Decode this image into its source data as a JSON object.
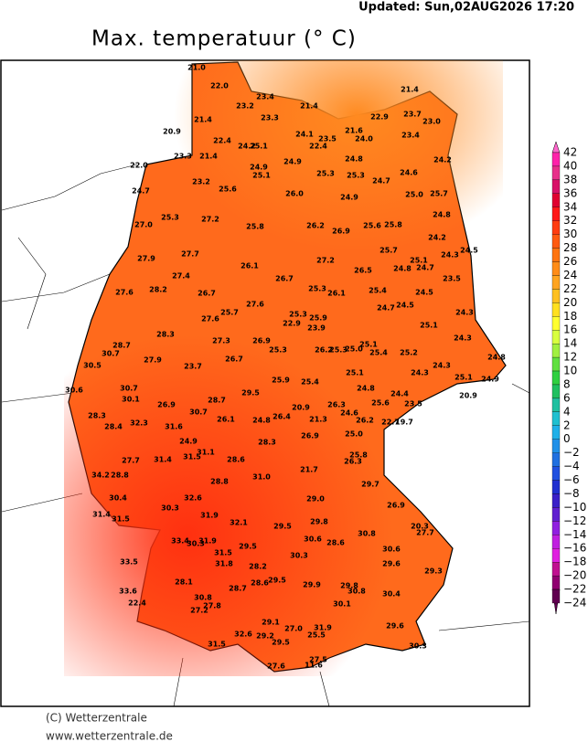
{
  "header": {
    "updated": "Updated: Sun,02AUG2026 17:20",
    "title": "Max. temperatuur (° C)"
  },
  "colorbar": {
    "labels": [
      "42",
      "40",
      "38",
      "36",
      "34",
      "32",
      "30",
      "28",
      "26",
      "24",
      "22",
      "20",
      "18",
      "16",
      "14",
      "12",
      "10",
      "8",
      "6",
      "4",
      "2",
      "0",
      "−2",
      "−4",
      "−6",
      "−8",
      "−10",
      "−12",
      "−14",
      "−16",
      "−18",
      "−20",
      "−22",
      "−24"
    ],
    "colors": [
      "#ff66cc",
      "#ff22aa",
      "#e8308a",
      "#d81068",
      "#e00030",
      "#ff1818",
      "#ff3c10",
      "#ff5a10",
      "#ff7410",
      "#ff8c18",
      "#ffa420",
      "#ffc020",
      "#ffe020",
      "#ffff30",
      "#d8ff40",
      "#a0f040",
      "#60e040",
      "#30d040",
      "#20c060",
      "#20c0a0",
      "#20c0d0",
      "#20b0e8",
      "#2090e8",
      "#2070e0",
      "#2050e0",
      "#2030d0",
      "#3a20c8",
      "#6020d0",
      "#9020e0",
      "#c020e0",
      "#e020e0",
      "#c01090",
      "#900070",
      "#600050"
    ]
  },
  "stations": [
    "21.0",
    "22.0",
    "23.4",
    "23.2",
    "21.4",
    "21.4",
    "23.3",
    "22.9",
    "23.7",
    "23.0",
    "21.4",
    "20.9",
    "24.1",
    "21.6",
    "23.4",
    "24.0",
    "22.4",
    "23.5",
    "22.4",
    "24.2",
    "25.1",
    "23.3",
    "21.4",
    "24.8",
    "24.9",
    "24.2",
    "22.0",
    "24.9",
    "25.1",
    "25.3",
    "25.3",
    "24.6",
    "23.2",
    "24.7",
    "25.6",
    "24.7",
    "26.0",
    "24.9",
    "25.0",
    "25.7",
    "25.3",
    "27.2",
    "24.8",
    "27.0",
    "25.8",
    "26.2",
    "26.9",
    "25.6",
    "25.8",
    "24.2",
    "24.5",
    "25.7",
    "24.3",
    "27.7",
    "27.2",
    "24.8",
    "25.1",
    "24.7",
    "27.9",
    "26.1",
    "26.5",
    "27.4",
    "23.5",
    "26.7",
    "28.2",
    "25.3",
    "24.5",
    "27.6",
    "26.7",
    "26.1",
    "25.4",
    "27.6",
    "24.5",
    "25.3",
    "24.7",
    "25.9",
    "24.3",
    "22.9",
    "27.6",
    "25.7",
    "28.3",
    "23.9",
    "25.1",
    "25.1",
    "26.2",
    "25.3",
    "25.0",
    "25.4",
    "25.2",
    "24.3",
    "28.7",
    "27.3",
    "26.9",
    "30.7",
    "25.3",
    "26.7",
    "27.9",
    "23.7",
    "24.8",
    "30.5",
    "24.3",
    "25.1",
    "24.3",
    "25.1",
    "24.9",
    "25.9",
    "25.4",
    "30.7",
    "29.5",
    "24.8",
    "30.6",
    "24.4",
    "28.7",
    "30.1",
    "26.9",
    "26.3",
    "25.6",
    "23.5",
    "20.9",
    "20.9",
    "24.6",
    "30.7",
    "26.1",
    "24.8",
    "26.4",
    "21.3",
    "26.2",
    "22.7",
    "19.7",
    "28.3",
    "31.6",
    "32.3",
    "28.4",
    "25.0",
    "26.9",
    "24.9",
    "28.3",
    "31.1",
    "31.5",
    "25.8",
    "26.3",
    "31.4",
    "27.7",
    "28.6",
    "21.7",
    "34.2",
    "28.8",
    "28.8",
    "31.0",
    "29.7",
    "32.6",
    "29.0",
    "30.4",
    "30.3",
    "26.9",
    "31.4",
    "31.5",
    "31.9",
    "32.1",
    "29.5",
    "29.8",
    "20.3",
    "27.7",
    "33.4",
    "31.9",
    "30.8",
    "30.3",
    "29.5",
    "30.6",
    "28.6",
    "31.5",
    "30.3",
    "30.6",
    "29.6",
    "33.5",
    "31.8",
    "28.2",
    "29.3",
    "28.1",
    "28.7",
    "28.6",
    "29.5",
    "29.9",
    "29.8",
    "30.8",
    "33.6",
    "30.8",
    "30.4",
    "27.8",
    "27.2",
    "30.1",
    "22.4",
    "29.1",
    "29.6",
    "27.0",
    "31.9",
    "25.5",
    "32.6",
    "29.2",
    "29.5",
    "31.5",
    "30.3",
    "27.5",
    "11.6",
    "27.6"
  ],
  "footer": {
    "copyright": "(C) Wetterzentrale",
    "url": "www.wetterzentrale.de"
  }
}
